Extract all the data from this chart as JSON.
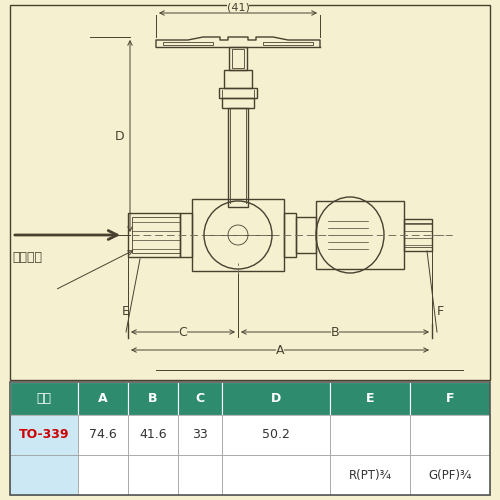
{
  "bg_color": "#f5f0d0",
  "line_color": "#4a4030",
  "dashed_color": "#7a7060",
  "table_header_bg": "#2e8b6e",
  "table_header_fg": "#ffffff",
  "table_row1_bg": "#cce8f4",
  "table_row1_fg": "#cc0000",
  "table_data_fg": "#333333",
  "col_headers": [
    "型番",
    "A",
    "B",
    "C",
    "D",
    "E",
    "F"
  ],
  "col_values_top": [
    "TO-339",
    "74.6",
    "41.6",
    "33",
    "50.2",
    "",
    ""
  ],
  "col_values_bot": [
    "",
    "",
    "",
    "",
    "",
    "R(PT)¾",
    "G(PF)¾"
  ],
  "flow_label": "流水方向",
  "dim_41": "(41)"
}
